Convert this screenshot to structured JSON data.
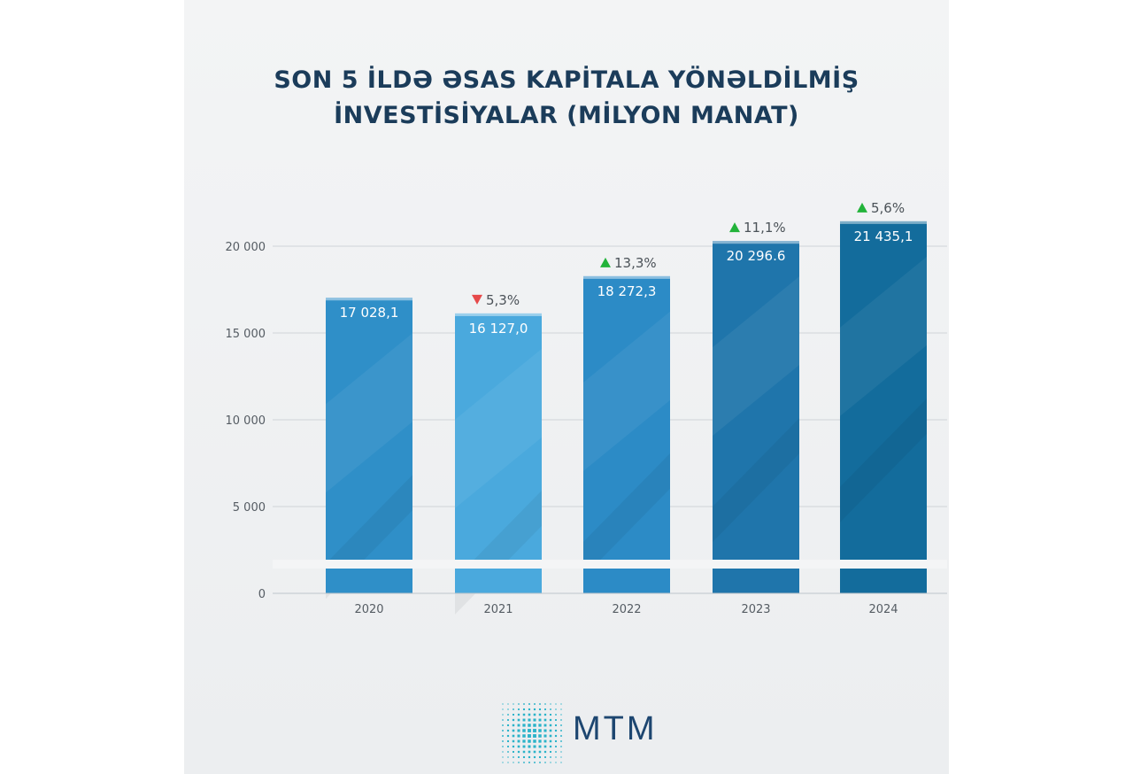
{
  "title_lines": [
    "SON 5 İLDƏ ƏSAS KAPİTALA YÖNƏLDİLMİŞ",
    "İNVESTİSİYALAR (MİLYON MANAT)"
  ],
  "logo": {
    "text": "MTM",
    "accent": "#2bb3c9"
  },
  "colors": {
    "bars": [
      "#2f8fc8",
      "#4aa9dd",
      "#2c8bc6",
      "#1f75ab",
      "#136c9c"
    ],
    "up": "#22b33a",
    "down": "#e64a4a",
    "grid": "#cfd4d8"
  },
  "chart_data": {
    "type": "bar",
    "title": "SON 5 İLDƏ ƏSAS KAPİTALA YÖNƏLDİLMİŞ İNVESTİSİYALAR (MİLYON MANAT)",
    "categories": [
      "2020",
      "2021",
      "2022",
      "2023",
      "2024"
    ],
    "values": [
      17028.1,
      16127.0,
      18272.3,
      20296.6,
      21435.1
    ],
    "value_labels": [
      "17 028,1",
      "16 127,0",
      "18 272,3",
      "20 296.6",
      "21 435,1"
    ],
    "changes": [
      null,
      {
        "label": "5,3%",
        "direction": "down"
      },
      {
        "label": "13,3%",
        "direction": "up"
      },
      {
        "label": "11,1%",
        "direction": "up"
      },
      {
        "label": "5,6%",
        "direction": "up"
      }
    ],
    "yticks": [
      0,
      5000,
      10000,
      15000,
      20000
    ],
    "ytick_labels": [
      "0",
      "5 000",
      "10 000",
      "15 000",
      "20 000"
    ],
    "ylim": [
      0,
      22000
    ],
    "grid": true,
    "axis_break": true
  }
}
